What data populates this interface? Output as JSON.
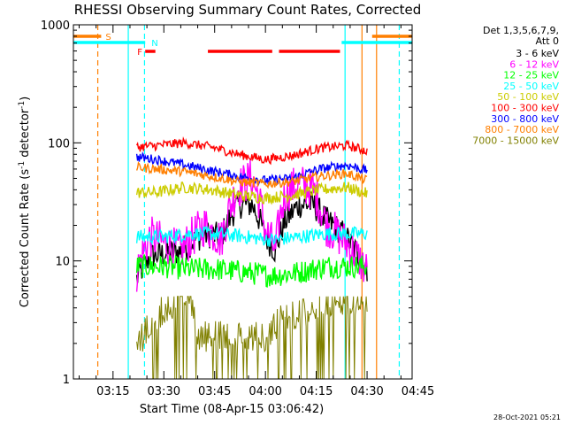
{
  "chart_data": {
    "type": "line",
    "title": "RHESSI Observing Summary Count Rates, Corrected",
    "xlabel": "Start Time (08-Apr-15 03:06:42)",
    "ylabel": "Corrected Count Rate (s",
    "ylabel_sup1": "-1",
    "ylabel_mid": " detector",
    "ylabel_sup2": "-1",
    "ylabel_end": ")",
    "y_scale": "log",
    "ylim": [
      1,
      1000
    ],
    "xlim_minutes": [
      3.3,
      103.3
    ],
    "x_ticks": [
      {
        "minute": 15,
        "label": "03:15"
      },
      {
        "minute": 30,
        "label": "03:30"
      },
      {
        "minute": 45,
        "label": "03:45"
      },
      {
        "minute": 60,
        "label": "04:00"
      },
      {
        "minute": 75,
        "label": "04:15"
      },
      {
        "minute": 90,
        "label": "04:30"
      },
      {
        "minute": 105,
        "label": "04:45"
      }
    ],
    "y_ticks": [
      {
        "value": 1,
        "label": "1"
      },
      {
        "value": 10,
        "label": "10"
      },
      {
        "value": 100,
        "label": "100"
      },
      {
        "value": 1000,
        "label": "1000"
      }
    ],
    "legend_header": [
      "Det 1,3,5,6,7,9,",
      "Att 0"
    ],
    "legend_position": "right",
    "series": [
      {
        "name": "3 - 6 keV",
        "color": "#000000",
        "t": [
          22,
          26,
          35,
          42,
          47,
          52,
          56,
          60,
          63,
          66,
          70,
          74,
          78,
          82,
          86,
          90
        ],
        "v": [
          7,
          11,
          12,
          17,
          16,
          30,
          30,
          16,
          12,
          22,
          30,
          30,
          22,
          18,
          13,
          8
        ]
      },
      {
        "name": "6 - 12 keV",
        "color": "#ff00ff",
        "t": [
          22,
          26,
          35,
          42,
          44,
          47,
          52,
          56,
          60,
          63,
          66,
          70,
          74,
          78,
          82,
          86,
          90
        ],
        "v": [
          8,
          16,
          12,
          20,
          18,
          15,
          42,
          50,
          18,
          12,
          38,
          45,
          40,
          20,
          16,
          12,
          8
        ]
      },
      {
        "name": "12 - 25 keV",
        "color": "#00ff00",
        "t": [
          22,
          30,
          38,
          46,
          54,
          62,
          70,
          78,
          86,
          90
        ],
        "v": [
          9,
          9,
          8.5,
          8.5,
          8,
          7.5,
          8,
          9,
          9,
          9
        ]
      },
      {
        "name": "25 - 50 keV",
        "color": "#00ffff",
        "t": [
          22,
          30,
          38,
          46,
          54,
          62,
          70,
          78,
          86,
          90
        ],
        "v": [
          16,
          16,
          17,
          17,
          16,
          15,
          16,
          17,
          17,
          17
        ]
      },
      {
        "name": "50 - 100 keV",
        "color": "#cccc00",
        "t": [
          22,
          28,
          36,
          44,
          52,
          60,
          68,
          76,
          84,
          90
        ],
        "v": [
          38,
          38,
          42,
          40,
          36,
          34,
          36,
          40,
          42,
          37
        ]
      },
      {
        "name": "100 - 300 keV",
        "color": "#ff0000",
        "t": [
          22,
          28,
          36,
          44,
          52,
          60,
          68,
          76,
          84,
          90
        ],
        "v": [
          92,
          95,
          100,
          92,
          80,
          72,
          78,
          90,
          95,
          85
        ]
      },
      {
        "name": "300 - 800 keV",
        "color": "#0000ff",
        "t": [
          22,
          28,
          36,
          44,
          52,
          60,
          68,
          76,
          84,
          90
        ],
        "v": [
          76,
          72,
          65,
          58,
          52,
          48,
          50,
          60,
          65,
          58
        ]
      },
      {
        "name": "800 - 7000 keV",
        "color": "#ff7f00",
        "t": [
          22,
          28,
          36,
          44,
          52,
          60,
          68,
          76,
          84,
          90
        ],
        "v": [
          62,
          60,
          57,
          52,
          47,
          45,
          47,
          52,
          55,
          48
        ]
      },
      {
        "name": "7000 - 15000 keV",
        "color": "#808000",
        "t": [
          22,
          24,
          28,
          34,
          38,
          40,
          48,
          54,
          60,
          66,
          70,
          78,
          86,
          90
        ],
        "v": [
          2,
          2,
          3,
          4,
          4,
          2,
          2,
          2,
          2,
          3,
          3,
          4,
          4,
          4
        ]
      }
    ],
    "flags": {
      "s_label": "S",
      "n_label": "N",
      "f_label": "F",
      "s_segments": [
        [
          3.3,
          11.5
        ],
        [
          91.5,
          103.3
        ]
      ],
      "n_segments": [
        [
          3.3,
          24.5
        ],
        [
          82.5,
          103.3
        ]
      ],
      "f_segments": [
        [
          24.5,
          27.5
        ],
        [
          43,
          62
        ],
        [
          64,
          82
        ]
      ]
    },
    "vlines": [
      {
        "minute": 10.5,
        "color": "#ff7f00",
        "style": "dashed"
      },
      {
        "minute": 19.5,
        "color": "#00ffff",
        "style": "solid"
      },
      {
        "minute": 24.3,
        "color": "#00ffff",
        "style": "dashed"
      },
      {
        "minute": 83.5,
        "color": "#00ffff",
        "style": "solid"
      },
      {
        "minute": 88.5,
        "color": "#ff7f00",
        "style": "solid"
      },
      {
        "minute": 92.8,
        "color": "#ff7f00",
        "style": "solid"
      },
      {
        "minute": 99.5,
        "color": "#00ffff",
        "style": "dashed"
      }
    ]
  },
  "footer": {
    "timestamp": "28-Oct-2021 05:21"
  }
}
